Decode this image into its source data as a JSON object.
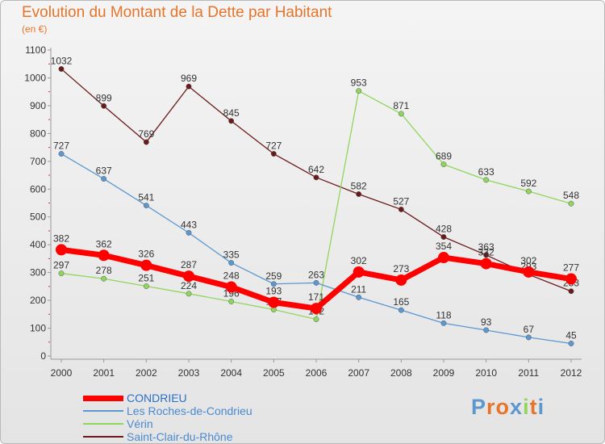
{
  "chart_data": {
    "type": "line",
    "title": "Evolution du Montant de la Dette par Habitant",
    "subtitle": "(en €)",
    "categories": [
      "2000",
      "2001",
      "2002",
      "2003",
      "2004",
      "2005",
      "2006",
      "2007",
      "2008",
      "2009",
      "2010",
      "2011",
      "2012"
    ],
    "ylim": [
      0,
      1100
    ],
    "yticks": [
      0,
      100,
      200,
      300,
      400,
      500,
      600,
      700,
      800,
      900,
      1000,
      1100
    ],
    "grid": false,
    "legend_position": "bottom-left",
    "series": [
      {
        "name": "Saint-Clair-du-Rhône",
        "color": "#6b1a1a",
        "values": [
          1032,
          899,
          769,
          969,
          845,
          727,
          642,
          582,
          527,
          428,
          363,
          293,
          233
        ]
      },
      {
        "name": "Vérin",
        "color": "#8fd65c",
        "values": [
          297,
          278,
          251,
          224,
          196,
          167,
          132,
          953,
          871,
          689,
          633,
          592,
          548
        ]
      },
      {
        "name": "Les Roches-de-Condrieu",
        "color": "#5b98cf",
        "values": [
          727,
          637,
          541,
          443,
          335,
          259,
          263,
          211,
          165,
          118,
          93,
          67,
          45
        ]
      },
      {
        "name": "CONDRIEU",
        "color": "#ff0000",
        "values": [
          382,
          362,
          326,
          287,
          248,
          193,
          171,
          302,
          273,
          354,
          332,
          302,
          277
        ]
      }
    ],
    "data_labels": {
      "Saint-Clair-du-Rhône": [
        "1032",
        "899",
        "769",
        "969",
        "845",
        "727",
        "642",
        "582",
        "527",
        "428",
        "363",
        "293",
        "233"
      ],
      "Vérin": [
        "297",
        "278",
        "251",
        "224",
        "196",
        "167",
        "132",
        "953",
        "871",
        "689",
        "633",
        "592",
        "548"
      ],
      "Les Roches-de-Condrieu": [
        "727",
        "637",
        "541",
        "443",
        "335",
        "259",
        "263",
        "211",
        "165",
        "118",
        "93",
        "67",
        "45"
      ],
      "CONDRIEU": [
        "382",
        "362",
        "326",
        "287",
        "248",
        "193",
        "171",
        "302",
        "273",
        "354",
        "332",
        "302",
        "277"
      ]
    },
    "legend": [
      "CONDRIEU",
      "Les Roches-de-Condrieu",
      "Vérin",
      "Saint-Clair-du-Rhône"
    ]
  },
  "logo": {
    "text": "Proxiti",
    "colors": [
      "#5b98cf",
      "#e8742a",
      "#e8742a",
      "#5b98cf",
      "#8fd65c",
      "#e8742a",
      "#5b98cf"
    ]
  }
}
